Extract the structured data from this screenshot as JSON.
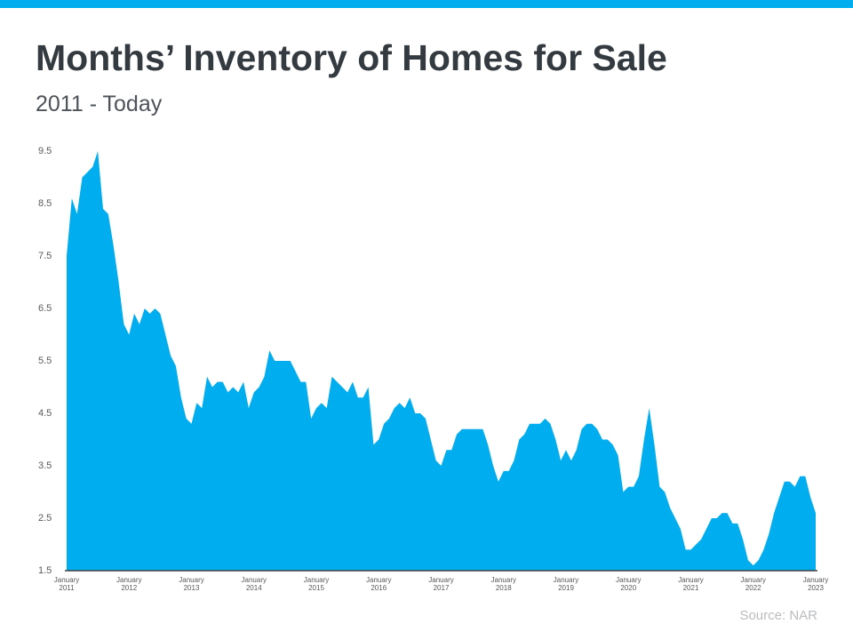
{
  "chart_data": {
    "type": "area",
    "title": "Months’ Inventory of Homes for Sale",
    "subtitle": "2011 - Today",
    "source": "Source: NAR",
    "color": "#00aeef",
    "categories": [
      "January 2011",
      null,
      null,
      null,
      null,
      null,
      null,
      null,
      null,
      null,
      null,
      null,
      "January 2012",
      null,
      null,
      null,
      null,
      null,
      null,
      null,
      null,
      null,
      null,
      null,
      "January 2013",
      null,
      null,
      null,
      null,
      null,
      null,
      null,
      null,
      null,
      null,
      null,
      "January 2014",
      null,
      null,
      null,
      null,
      null,
      null,
      null,
      null,
      null,
      null,
      null,
      "January 2015",
      null,
      null,
      null,
      null,
      null,
      null,
      null,
      null,
      null,
      null,
      null,
      "January 2016",
      null,
      null,
      null,
      null,
      null,
      null,
      null,
      null,
      null,
      null,
      null,
      "January 2017",
      null,
      null,
      null,
      null,
      null,
      null,
      null,
      null,
      null,
      null,
      null,
      "January 2018",
      null,
      null,
      null,
      null,
      null,
      null,
      null,
      null,
      null,
      null,
      null,
      "January 2019",
      null,
      null,
      null,
      null,
      null,
      null,
      null,
      null,
      null,
      null,
      null,
      "January 2020",
      null,
      null,
      null,
      null,
      null,
      null,
      null,
      null,
      null,
      null,
      null,
      "January 2021",
      null,
      null,
      null,
      null,
      null,
      null,
      null,
      null,
      null,
      null,
      null,
      "January 2022",
      null,
      null,
      null,
      null,
      null,
      null,
      null,
      null,
      null,
      null,
      null,
      "January 2023"
    ],
    "values": [
      7.5,
      8.6,
      8.3,
      9.0,
      9.1,
      9.2,
      9.5,
      8.4,
      8.3,
      7.7,
      7.0,
      6.2,
      6.0,
      6.4,
      6.2,
      6.5,
      6.4,
      6.5,
      6.4,
      6.0,
      5.6,
      5.4,
      4.8,
      4.4,
      4.3,
      4.7,
      4.6,
      5.2,
      5.0,
      5.1,
      5.1,
      4.9,
      5.0,
      4.9,
      5.1,
      4.6,
      4.9,
      5.0,
      5.2,
      5.7,
      5.5,
      5.5,
      5.5,
      5.5,
      5.3,
      5.1,
      5.1,
      4.4,
      4.6,
      4.7,
      4.6,
      5.2,
      5.1,
      5.0,
      4.9,
      5.1,
      4.8,
      4.8,
      5.0,
      3.9,
      4.0,
      4.3,
      4.4,
      4.6,
      4.7,
      4.6,
      4.8,
      4.5,
      4.5,
      4.4,
      4.0,
      3.6,
      3.5,
      3.8,
      3.8,
      4.1,
      4.2,
      4.2,
      4.2,
      4.2,
      4.2,
      3.9,
      3.5,
      3.2,
      3.4,
      3.4,
      3.6,
      4.0,
      4.1,
      4.3,
      4.3,
      4.3,
      4.4,
      4.3,
      4.0,
      3.6,
      3.8,
      3.6,
      3.8,
      4.2,
      4.3,
      4.3,
      4.2,
      4.0,
      4.0,
      3.9,
      3.7,
      3.0,
      3.1,
      3.1,
      3.3,
      4.0,
      4.6,
      3.9,
      3.1,
      3.0,
      2.7,
      2.5,
      2.3,
      1.9,
      1.9,
      2.0,
      2.1,
      2.3,
      2.5,
      2.5,
      2.6,
      2.6,
      2.4,
      2.4,
      2.1,
      1.7,
      1.6,
      1.7,
      1.9,
      2.2,
      2.6,
      2.9,
      3.2,
      3.2,
      3.1,
      3.3,
      3.3,
      2.9,
      2.6
    ],
    "ylim": [
      1.5,
      9.5
    ],
    "yticks": [
      1.5,
      2.5,
      3.5,
      4.5,
      5.5,
      6.5,
      7.5,
      8.5,
      9.5
    ],
    "grid": false
  }
}
